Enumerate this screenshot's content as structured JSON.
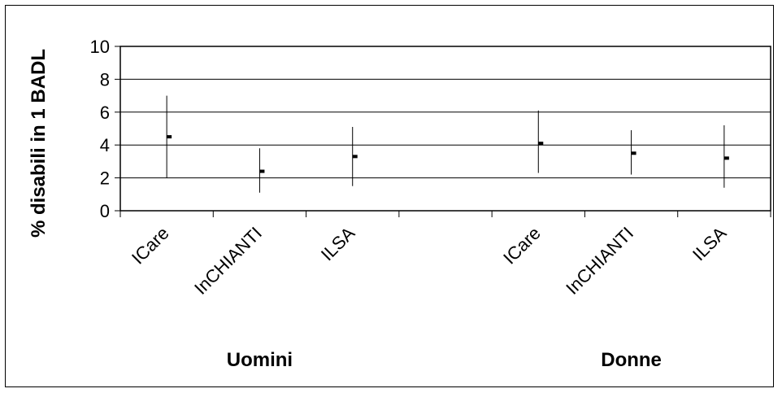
{
  "chart_data": {
    "type": "scatter",
    "ylabel": "% disabili in 1 BADL",
    "xlabel": "",
    "ylim": [
      0,
      10
    ],
    "yticks": [
      0,
      2,
      4,
      6,
      8,
      10
    ],
    "grid": true,
    "groups": [
      {
        "label": "Uomini",
        "categories": [
          "ICare",
          "InCHIANTI",
          "ILSA"
        ],
        "points": [
          {
            "category": "ICare",
            "value": 4.5,
            "low": 2.0,
            "high": 7.0
          },
          {
            "category": "InCHIANTI",
            "value": 2.4,
            "low": 1.1,
            "high": 3.8
          },
          {
            "category": "ILSA",
            "value": 3.3,
            "low": 1.5,
            "high": 5.1
          }
        ]
      },
      {
        "label": "Donne",
        "categories": [
          "ICare",
          "InCHIANTI",
          "ILSA"
        ],
        "points": [
          {
            "category": "ICare",
            "value": 4.1,
            "low": 2.3,
            "high": 6.1
          },
          {
            "category": "InCHIANTI",
            "value": 3.5,
            "low": 2.2,
            "high": 4.9
          },
          {
            "category": "ILSA",
            "value": 3.2,
            "low": 1.4,
            "high": 5.2
          }
        ]
      }
    ]
  },
  "colors": {
    "marks": "#000000",
    "grid": "#000000",
    "background": "#ffffff"
  }
}
